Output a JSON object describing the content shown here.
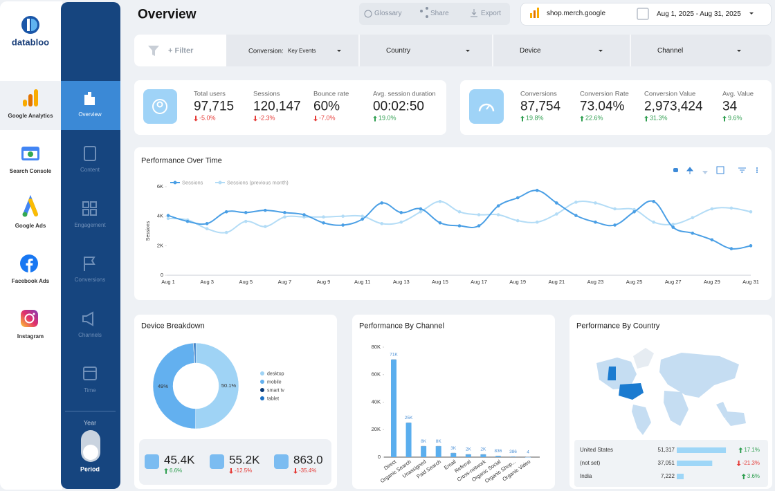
{
  "sidebar": {
    "brand": "databloo",
    "sources": [
      "Google Analytics",
      "Search Console",
      "Google Ads",
      "Facebook Ads",
      "Instagram"
    ],
    "nav": [
      "Overview",
      "Content",
      "Engagement",
      "Conversions",
      "Channels",
      "Time"
    ],
    "period_title": "Year",
    "period_label": "Period"
  },
  "header": {
    "title": "Overview",
    "buttons": [
      "Glossary",
      "Share",
      "Export"
    ],
    "property": "shop.merch.google",
    "date_range": "Aug 1, 2025 - Aug 31, 2025"
  },
  "filters": {
    "add": "+ Filter",
    "conversion_label": "Conversion:",
    "conversion_value": "Key Events",
    "dropdowns": [
      "Country",
      "Device",
      "Channel"
    ]
  },
  "kpi_groups": [
    [
      {
        "label": "Total users",
        "value": "97,715",
        "change": "-5.0%"
      },
      {
        "label": "Sessions",
        "value": "120,147",
        "change": "-2.3%"
      },
      {
        "label": "Bounce rate",
        "value": "60%",
        "change": "-7.0%"
      },
      {
        "label": "Avg. session duration",
        "value": "00:02:50",
        "change": "19.0%"
      }
    ],
    [
      {
        "label": "Conversions",
        "value": "87,754",
        "change": "19.8%"
      },
      {
        "label": "Conversion Rate",
        "value": "73.04%",
        "change": "22.6%"
      },
      {
        "label": "Conversion Value",
        "value": "2,973,424",
        "change": "31.3%"
      },
      {
        "label": "Avg. Value",
        "value": "34",
        "change": "9.6%"
      }
    ]
  ],
  "device_totals": [
    {
      "value": "45.4K",
      "change": "6.6%"
    },
    {
      "value": "55.2K",
      "change": "-12.5%"
    },
    {
      "value": "863.0",
      "change": "-35.4%"
    }
  ],
  "chart_data": [
    {
      "type": "line",
      "title": "Performance Over Time",
      "ylabel": "Sessions",
      "categories": [
        "Aug 1",
        null,
        "Aug 3",
        null,
        "Aug 5",
        null,
        "Aug 7",
        null,
        "Aug 9",
        null,
        "Aug 11",
        null,
        "Aug 13",
        null,
        "Aug 15",
        null,
        "Aug 17",
        null,
        "Aug 19",
        null,
        "Aug 21",
        null,
        "Aug 23",
        null,
        "Aug 25",
        null,
        "Aug 27",
        null,
        "Aug 29",
        null,
        "Aug 31"
      ],
      "series": [
        {
          "name": "Sessions",
          "color": "#4a9fe5",
          "values": [
            4050,
            3650,
            3500,
            4300,
            4250,
            4400,
            4250,
            4100,
            3550,
            3400,
            3800,
            4900,
            4250,
            4500,
            3550,
            3350,
            3350,
            4700,
            5250,
            5750,
            4900,
            4050,
            3600,
            3400,
            4300,
            5000,
            3250,
            2850,
            2400,
            1800,
            2000
          ]
        },
        {
          "name": "Sessions (previous month)",
          "color": "#b3dcf6",
          "values": [
            3850,
            3750,
            3150,
            2900,
            3650,
            3300,
            3950,
            3950,
            3950,
            4000,
            4000,
            3500,
            3600,
            4300,
            5000,
            4300,
            4100,
            4100,
            3700,
            3600,
            4150,
            4950,
            4900,
            4500,
            4450,
            3600,
            3450,
            3900,
            4500,
            4550,
            4300
          ]
        }
      ],
      "ylim": [
        0,
        6000
      ],
      "yticks": [
        0,
        {
          "value": 2000,
          "label": "2K"
        },
        {
          "value": 4000,
          "label": "4K"
        },
        {
          "value": 6000,
          "label": "6K"
        }
      ],
      "grid": false
    },
    {
      "type": "pie",
      "title": "Device Breakdown",
      "categories": [
        "desktop",
        "mobile",
        "smart tv",
        "tablet"
      ],
      "values": [
        50.1,
        49,
        0.3,
        0.6
      ],
      "value_labels": [
        "50.1%",
        "49%",
        null,
        null
      ],
      "colors": [
        "#9fd3f5",
        "#63b0ef",
        "#0b3b78",
        "#1a6fc4"
      ]
    },
    {
      "type": "bar",
      "title": "Performance By Channel",
      "categories": [
        "Direct",
        "Organic Search",
        "Unassigned",
        "Paid Search",
        "Email",
        "Referral",
        "Cross-network",
        "Organic Social",
        "Organic Shop...",
        "Organic Video"
      ],
      "values": [
        71000,
        25000,
        8000,
        8000,
        3000,
        2000,
        2000,
        836,
        386,
        4
      ],
      "value_labels": [
        "71K",
        "25K",
        "8K",
        "8K",
        "3K",
        "2K",
        "2K",
        "836",
        "386",
        "4"
      ],
      "color": "#5aaeee",
      "ylim": [
        0,
        80000
      ],
      "yticks": [
        0,
        {
          "value": 20000,
          "label": "20K"
        },
        {
          "value": 40000,
          "label": "40K"
        },
        {
          "value": 60000,
          "label": "60K"
        },
        {
          "value": 80000,
          "label": "80K"
        }
      ]
    },
    {
      "type": "hbar",
      "title": "Performance By Country",
      "categories": [
        "United States",
        "(not set)",
        "India"
      ],
      "values": [
        51317,
        37051,
        7222
      ],
      "value_labels": [
        "51,317",
        "37,051",
        "7,222"
      ],
      "changes": [
        "17.1%",
        "-21.3%",
        "3.6%"
      ],
      "color": "#9ed6f7",
      "xlim": [
        0,
        52000
      ]
    }
  ]
}
